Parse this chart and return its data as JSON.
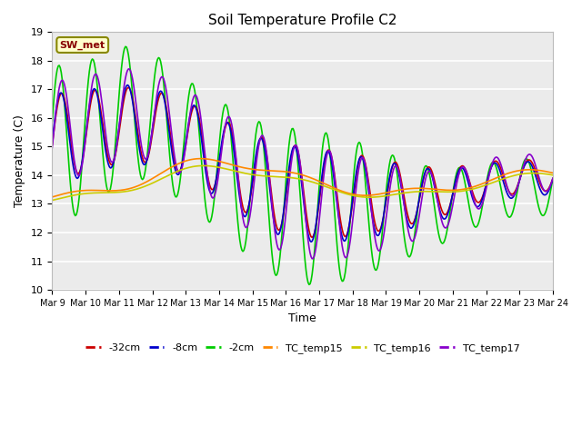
{
  "title": "Soil Temperature Profile C2",
  "xlabel": "Time",
  "ylabel": "Temperature (C)",
  "ylim": [
    10.0,
    19.0
  ],
  "yticks": [
    10.0,
    11.0,
    12.0,
    13.0,
    14.0,
    15.0,
    16.0,
    17.0,
    18.0,
    19.0
  ],
  "xtick_labels": [
    "Mar 9",
    "Mar 10",
    "Mar 11",
    "Mar 12",
    "Mar 13",
    "Mar 14",
    "Mar 15",
    "Mar 16",
    "Mar 17",
    "Mar 18",
    "Mar 19",
    "Mar 20",
    "Mar 21",
    "Mar 22",
    "Mar 23",
    "Mar 24"
  ],
  "background_color": "#ffffff",
  "plot_bg_color": "#ebebeb",
  "grid_color": "#ffffff",
  "series": {
    "-32cm": {
      "color": "#cc0000",
      "lw": 1.2
    },
    "-8cm": {
      "color": "#0000cc",
      "lw": 1.2
    },
    "-2cm": {
      "color": "#00cc00",
      "lw": 1.2
    },
    "TC_temp15": {
      "color": "#ff8800",
      "lw": 1.2
    },
    "TC_temp16": {
      "color": "#cccc00",
      "lw": 1.2
    },
    "TC_temp17": {
      "color": "#8800cc",
      "lw": 1.2
    }
  },
  "annotation_text": "SW_met",
  "annotation_color": "#880000",
  "annotation_bg": "#ffffcc",
  "annotation_border": "#888800",
  "figsize": [
    6.4,
    4.8
  ],
  "dpi": 100
}
